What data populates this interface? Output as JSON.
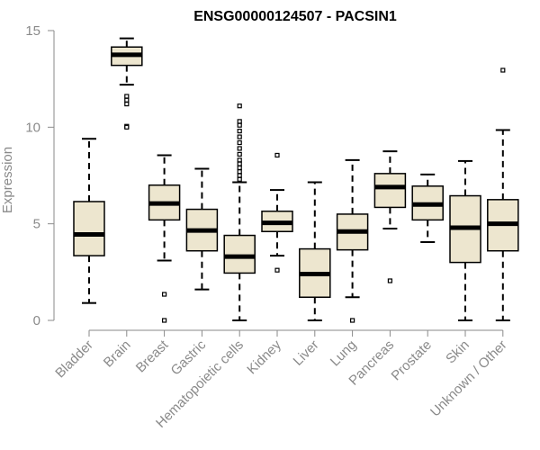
{
  "chart_data": {
    "type": "boxplot",
    "title": "ENSG00000124507 - PACSIN1",
    "xlabel": "",
    "ylabel": "Expression",
    "ylim": [
      0,
      15
    ],
    "yticks": [
      0,
      5,
      10,
      15
    ],
    "box_fill": "#EDE6CF",
    "box_stroke": "#000000",
    "axis_color": "#8a8a8a",
    "groups": [
      {
        "name": "Bladder",
        "whisker_low": 0.9,
        "q1": 3.35,
        "median": 4.45,
        "q3": 6.15,
        "whisker_high": 9.4,
        "outliers": []
      },
      {
        "name": "Brain",
        "whisker_low": 12.2,
        "q1": 13.2,
        "median": 13.75,
        "q3": 14.15,
        "whisker_high": 14.6,
        "outliers": [
          11.6,
          11.4,
          11.2,
          10.05,
          10.0
        ]
      },
      {
        "name": "Breast",
        "whisker_low": 3.1,
        "q1": 5.2,
        "median": 6.05,
        "q3": 7.0,
        "whisker_high": 8.55,
        "outliers": [
          1.35,
          0.0
        ]
      },
      {
        "name": "Gastric",
        "whisker_low": 1.6,
        "q1": 3.6,
        "median": 4.65,
        "q3": 5.75,
        "whisker_high": 7.85,
        "outliers": []
      },
      {
        "name": "Hematopoietic cells",
        "whisker_low": 0.0,
        "q1": 2.45,
        "median": 3.3,
        "q3": 4.4,
        "whisker_high": 7.15,
        "outliers": [
          7.3,
          7.5,
          7.7,
          7.9,
          8.1,
          8.3,
          8.6,
          8.9,
          9.2,
          9.5,
          9.8,
          10.1,
          10.3,
          11.1
        ]
      },
      {
        "name": "Kidney",
        "whisker_low": 3.35,
        "q1": 4.6,
        "median": 5.05,
        "q3": 5.65,
        "whisker_high": 6.75,
        "outliers": [
          8.55,
          2.6
        ]
      },
      {
        "name": "Liver",
        "whisker_low": 0.0,
        "q1": 1.2,
        "median": 2.4,
        "q3": 3.7,
        "whisker_high": 7.15,
        "outliers": []
      },
      {
        "name": "Lung",
        "whisker_low": 1.2,
        "q1": 3.65,
        "median": 4.6,
        "q3": 5.5,
        "whisker_high": 8.3,
        "outliers": [
          0.0
        ]
      },
      {
        "name": "Pancreas",
        "whisker_low": 4.75,
        "q1": 5.85,
        "median": 6.9,
        "q3": 7.6,
        "whisker_high": 8.75,
        "outliers": [
          2.05
        ]
      },
      {
        "name": "Prostate",
        "whisker_low": 4.05,
        "q1": 5.2,
        "median": 6.0,
        "q3": 6.95,
        "whisker_high": 7.55,
        "outliers": []
      },
      {
        "name": "Skin",
        "whisker_low": 0.0,
        "q1": 3.0,
        "median": 4.8,
        "q3": 6.45,
        "whisker_high": 8.25,
        "outliers": []
      },
      {
        "name": "Unknown / Other",
        "whisker_low": 0.0,
        "q1": 3.6,
        "median": 5.0,
        "q3": 6.25,
        "whisker_high": 9.85,
        "outliers": [
          12.95
        ]
      }
    ]
  }
}
